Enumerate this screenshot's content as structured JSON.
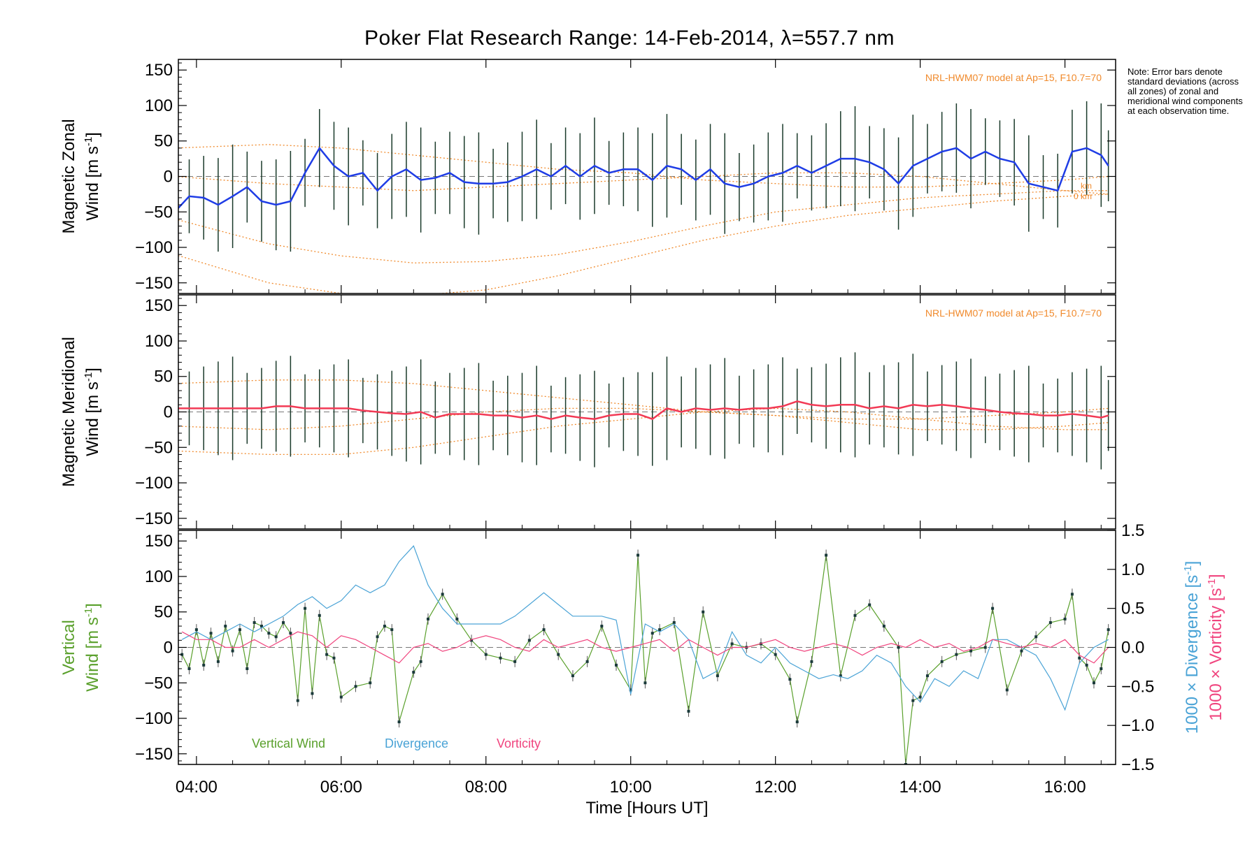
{
  "title": "Poker Flat Research Range: 14-Feb-2014, λ=557.7 nm",
  "note": "Note: Error bars denote standard deviations (across all zones) of zonal and meridional wind components at each observation time.",
  "colors": {
    "zonal": "#1f3de6",
    "meridional": "#f23a55",
    "vertical": "#5aa02c",
    "divergence": "#4aa3d6",
    "vorticity": "#f0447e",
    "model": "#f08a2c",
    "scatter": "#a6a6e6",
    "errorbar": "#1a3a2a"
  },
  "chart_data": [
    {
      "type": "line",
      "panel": "zonal",
      "ylabel": "Magnetic Zonal Wind [m s⁻¹]",
      "ylabel_line1": "Magnetic Zonal",
      "ylabel_line2": "Wind [m s",
      "ylim": [
        -165,
        165
      ],
      "yticks": [
        -150,
        -100,
        -50,
        0,
        50,
        100,
        150
      ],
      "model_label": "NRL-HWM07 model at Ap=15, F10.7=70",
      "model_alt_labels": [
        "km",
        "0 km"
      ],
      "series": [
        {
          "x": [
            3.7,
            3.9,
            4.1,
            4.3,
            4.5,
            4.7,
            4.9,
            5.1,
            5.3,
            5.5,
            5.7,
            5.9,
            6.1,
            6.3,
            6.5,
            6.7,
            6.9,
            7.1,
            7.3,
            7.5,
            7.7,
            7.9,
            8.1,
            8.3,
            8.5,
            8.7,
            8.9,
            9.1,
            9.3,
            9.5,
            9.7,
            9.9,
            10.1,
            10.3,
            10.5,
            10.7,
            10.9,
            11.1,
            11.3,
            11.5,
            11.7,
            11.9,
            12.1,
            12.3,
            12.5,
            12.7,
            12.9,
            13.1,
            13.3,
            13.5,
            13.7,
            13.9,
            14.1,
            14.3,
            14.5,
            14.7,
            14.9,
            15.1,
            15.3,
            15.5,
            15.7,
            15.9,
            16.1,
            16.3,
            16.5,
            16.6
          ],
          "y": [
            -50,
            -28,
            -30,
            -40,
            -28,
            -15,
            -35,
            -40,
            -35,
            5,
            40,
            15,
            0,
            5,
            -20,
            0,
            10,
            -5,
            -2,
            5,
            -8,
            -10,
            -10,
            -8,
            0,
            10,
            0,
            15,
            0,
            15,
            5,
            10,
            10,
            -5,
            15,
            10,
            -5,
            10,
            -10,
            -15,
            -10,
            0,
            5,
            15,
            5,
            15,
            25,
            25,
            20,
            10,
            -10,
            15,
            25,
            35,
            40,
            25,
            35,
            25,
            20,
            -10,
            -15,
            -20,
            35,
            40,
            30,
            15
          ]
        }
      ],
      "model_curves": [
        {
          "x": [
            3.7,
            5.0,
            6.0,
            7.0,
            8.0,
            9.0,
            10.0,
            11.0,
            12.0,
            13.0,
            14.0,
            15.0,
            16.0,
            16.6
          ],
          "y": [
            0,
            -10,
            -15,
            -20,
            -15,
            -10,
            -5,
            0,
            5,
            5,
            0,
            -10,
            -20,
            -25
          ]
        },
        {
          "x": [
            3.7,
            5.0,
            6.0,
            7.0,
            8.0,
            9.0,
            10.0,
            11.0,
            12.0,
            13.0,
            14.0,
            15.0,
            16.0,
            16.6
          ],
          "y": [
            -60,
            -95,
            -112,
            -122,
            -120,
            -110,
            -92,
            -70,
            -50,
            -40,
            -30,
            -25,
            -20,
            -20
          ]
        },
        {
          "x": [
            3.7,
            5.0,
            6.0,
            7.0,
            8.0,
            9.0,
            10.0,
            11.0,
            12.0,
            13.0,
            14.0,
            15.0,
            16.0,
            16.6
          ],
          "y": [
            -110,
            -150,
            -165,
            -168,
            -160,
            -140,
            -115,
            -90,
            -70,
            -55,
            -45,
            -35,
            -28,
            -25
          ]
        },
        {
          "x": [
            3.7,
            5.0,
            6.0,
            7.0,
            8.0,
            9.0,
            10.0,
            11.0,
            12.0,
            13.0,
            14.0,
            15.0,
            16.0,
            16.6
          ],
          "y": [
            40,
            45,
            40,
            30,
            20,
            10,
            5,
            -5,
            -10,
            -15,
            -15,
            -10,
            -5,
            0
          ]
        }
      ]
    },
    {
      "type": "line",
      "panel": "meridional",
      "ylabel": "Magnetic Meridional Wind [m s⁻¹]",
      "ylabel_line1": "Magnetic Meridional",
      "ylabel_line2": "Wind [m s",
      "ylim": [
        -165,
        165
      ],
      "yticks": [
        -150,
        -100,
        -50,
        0,
        50,
        100,
        150
      ],
      "model_label": "NRL-HWM07 model at Ap=15, F10.7=70",
      "series": [
        {
          "x": [
            3.7,
            3.9,
            4.1,
            4.3,
            4.5,
            4.7,
            4.9,
            5.1,
            5.3,
            5.5,
            5.7,
            5.9,
            6.1,
            6.3,
            6.5,
            6.7,
            6.9,
            7.1,
            7.3,
            7.5,
            7.7,
            7.9,
            8.1,
            8.3,
            8.5,
            8.7,
            8.9,
            9.1,
            9.3,
            9.5,
            9.7,
            9.9,
            10.1,
            10.3,
            10.5,
            10.7,
            10.9,
            11.1,
            11.3,
            11.5,
            11.7,
            11.9,
            12.1,
            12.3,
            12.5,
            12.7,
            12.9,
            13.1,
            13.3,
            13.5,
            13.7,
            13.9,
            14.1,
            14.3,
            14.5,
            14.7,
            14.9,
            15.1,
            15.3,
            15.5,
            15.7,
            15.9,
            16.1,
            16.3,
            16.5,
            16.6
          ],
          "y": [
            5,
            5,
            5,
            5,
            5,
            5,
            5,
            8,
            8,
            5,
            5,
            5,
            5,
            2,
            0,
            -2,
            -3,
            0,
            -8,
            -3,
            -3,
            -3,
            -5,
            -5,
            -8,
            -5,
            -10,
            -5,
            -8,
            -10,
            -5,
            -3,
            -3,
            -10,
            5,
            0,
            5,
            3,
            5,
            3,
            5,
            5,
            8,
            15,
            10,
            8,
            10,
            10,
            5,
            8,
            5,
            10,
            8,
            10,
            8,
            5,
            3,
            0,
            -2,
            -3,
            -5,
            -5,
            -3,
            -5,
            -8,
            -5
          ]
        }
      ],
      "model_curves": [
        {
          "x": [
            3.7,
            5.0,
            6.0,
            7.0,
            8.0,
            9.0,
            10.0,
            11.0,
            12.0,
            13.0,
            14.0,
            15.0,
            16.0,
            16.6
          ],
          "y": [
            -55,
            -60,
            -60,
            -50,
            -35,
            -20,
            -10,
            0,
            5,
            0,
            -10,
            -20,
            -25,
            -25
          ]
        },
        {
          "x": [
            3.7,
            5.0,
            6.0,
            7.0,
            8.0,
            9.0,
            10.0,
            11.0,
            12.0,
            13.0,
            14.0,
            15.0,
            16.0,
            16.6
          ],
          "y": [
            -20,
            -25,
            -20,
            -10,
            0,
            5,
            5,
            0,
            -5,
            -15,
            -25,
            -25,
            -20,
            -15
          ]
        },
        {
          "x": [
            3.7,
            5.0,
            6.0,
            7.0,
            8.0,
            9.0,
            10.0,
            11.0,
            12.0,
            13.0,
            14.0,
            15.0,
            16.0,
            16.6
          ],
          "y": [
            40,
            45,
            45,
            40,
            30,
            20,
            10,
            0,
            -5,
            -10,
            -10,
            -5,
            0,
            5
          ]
        }
      ]
    },
    {
      "type": "line",
      "panel": "vertical",
      "ylabel": "Vertical Wind [m s⁻¹]",
      "ylabel_line1": "Vertical",
      "ylabel_line2": "Wind [m s",
      "ylim": [
        -165,
        165
      ],
      "yticks": [
        -150,
        -100,
        -50,
        0,
        50,
        100,
        150
      ],
      "y2label_div": "1000 × Divergence [s⁻¹]",
      "y2label_div_text": "1000 × Divergence [s",
      "y2label_vort": "1000 × Vorticity [s⁻¹]",
      "y2label_vort_text": "1000 × Vorticity [s",
      "y2lim": [
        -1.5,
        1.5
      ],
      "y2ticks": [
        -1.5,
        -1.0,
        -0.5,
        0.0,
        0.5,
        1.0,
        1.5
      ],
      "y2ticklabels": [
        "−1.5",
        "−1.0",
        "−0.5",
        "0.0",
        "0.5",
        "1.0",
        "1.5"
      ],
      "legend": [
        "Vertical Wind",
        "Divergence",
        "Vorticity"
      ],
      "xlabel": "Time [Hours UT]",
      "xticks": [
        4,
        6,
        8,
        10,
        12,
        14,
        16
      ],
      "xticklabels": [
        "04:00",
        "06:00",
        "08:00",
        "10:00",
        "12:00",
        "14:00",
        "16:00"
      ],
      "xlim": [
        3.75,
        16.7
      ],
      "series": [
        {
          "name": "Vertical Wind",
          "x": [
            3.8,
            3.9,
            4.0,
            4.1,
            4.2,
            4.3,
            4.4,
            4.5,
            4.6,
            4.7,
            4.8,
            4.9,
            5.0,
            5.1,
            5.2,
            5.3,
            5.4,
            5.5,
            5.6,
            5.7,
            5.8,
            5.9,
            6.0,
            6.2,
            6.4,
            6.5,
            6.6,
            6.7,
            6.8,
            7.0,
            7.1,
            7.2,
            7.4,
            7.6,
            7.8,
            8.0,
            8.2,
            8.4,
            8.6,
            8.8,
            9.0,
            9.2,
            9.4,
            9.6,
            9.8,
            10.0,
            10.1,
            10.2,
            10.3,
            10.4,
            10.6,
            10.8,
            11.0,
            11.2,
            11.4,
            11.6,
            11.8,
            12.0,
            12.2,
            12.3,
            12.5,
            12.7,
            12.9,
            13.1,
            13.3,
            13.5,
            13.7,
            13.8,
            13.9,
            14.0,
            14.1,
            14.3,
            14.5,
            14.7,
            14.9,
            15.0,
            15.2,
            15.4,
            15.6,
            15.8,
            16.0,
            16.1,
            16.2,
            16.3,
            16.4,
            16.5,
            16.6
          ],
          "y": [
            -10,
            -30,
            25,
            -25,
            20,
            -20,
            30,
            -5,
            25,
            -30,
            35,
            30,
            20,
            15,
            35,
            20,
            -75,
            55,
            -65,
            45,
            -10,
            -15,
            -70,
            -55,
            -50,
            15,
            30,
            25,
            -105,
            -35,
            -20,
            40,
            75,
            40,
            10,
            -10,
            -15,
            -20,
            10,
            25,
            -10,
            -40,
            -20,
            30,
            -25,
            -60,
            130,
            -50,
            20,
            25,
            35,
            -90,
            50,
            -40,
            5,
            0,
            5,
            -10,
            -45,
            -105,
            -20,
            130,
            -40,
            45,
            60,
            30,
            0,
            -165,
            -75,
            -70,
            -40,
            -20,
            -10,
            -5,
            0,
            55,
            -60,
            -5,
            15,
            35,
            40,
            75,
            -15,
            -25,
            -50,
            -30,
            25
          ]
        },
        {
          "name": "Divergence",
          "x": [
            3.8,
            4.0,
            4.2,
            4.4,
            4.6,
            4.8,
            5.0,
            5.2,
            5.4,
            5.6,
            5.8,
            6.0,
            6.2,
            6.4,
            6.6,
            6.8,
            7.0,
            7.2,
            7.4,
            7.6,
            7.8,
            8.0,
            8.2,
            8.4,
            8.6,
            8.8,
            9.0,
            9.2,
            9.4,
            9.6,
            9.8,
            10.0,
            10.2,
            10.4,
            10.6,
            10.8,
            11.0,
            11.2,
            11.4,
            11.6,
            11.8,
            12.0,
            12.2,
            12.4,
            12.6,
            12.8,
            13.0,
            13.2,
            13.4,
            13.6,
            13.8,
            14.0,
            14.2,
            14.4,
            14.6,
            14.8,
            15.0,
            15.2,
            15.4,
            15.6,
            15.8,
            16.0,
            16.2,
            16.4,
            16.6
          ],
          "y": [
            0.1,
            0.2,
            0.1,
            0.2,
            0.3,
            0.2,
            0.3,
            0.4,
            0.55,
            0.65,
            0.5,
            0.6,
            0.8,
            0.7,
            0.8,
            1.1,
            1.3,
            0.8,
            0.5,
            0.3,
            0.3,
            0.3,
            0.3,
            0.4,
            0.55,
            0.7,
            0.55,
            0.4,
            0.4,
            0.4,
            0.35,
            -0.6,
            0.3,
            0.2,
            0.3,
            0.1,
            -0.4,
            -0.3,
            0.2,
            -0.1,
            -0.2,
            0.0,
            -0.2,
            -0.3,
            -0.4,
            -0.35,
            -0.4,
            -0.3,
            -0.1,
            -0.2,
            -0.5,
            -0.7,
            -0.4,
            -0.5,
            -0.3,
            -0.4,
            0.1,
            0.1,
            0.0,
            -0.1,
            -0.4,
            -0.8,
            -0.2,
            0.0,
            0.1
          ]
        },
        {
          "name": "Vorticity",
          "x": [
            3.8,
            4.0,
            4.2,
            4.4,
            4.6,
            4.8,
            5.0,
            5.2,
            5.4,
            5.6,
            5.8,
            6.0,
            6.2,
            6.4,
            6.6,
            6.8,
            7.0,
            7.2,
            7.4,
            7.6,
            7.8,
            8.0,
            8.2,
            8.4,
            8.6,
            8.8,
            9.0,
            9.2,
            9.4,
            9.6,
            9.8,
            10.0,
            10.2,
            10.4,
            10.6,
            10.8,
            11.0,
            11.2,
            11.4,
            11.6,
            11.8,
            12.0,
            12.2,
            12.4,
            12.6,
            12.8,
            13.0,
            13.2,
            13.4,
            13.6,
            13.8,
            14.0,
            14.2,
            14.4,
            14.6,
            14.8,
            15.0,
            15.2,
            15.4,
            15.6,
            15.8,
            16.0,
            16.2,
            16.4,
            16.6
          ],
          "y": [
            0.2,
            0.1,
            0.1,
            0.0,
            0.0,
            0.1,
            0.0,
            0.1,
            0.2,
            0.15,
            0.0,
            0.15,
            0.1,
            0.0,
            -0.1,
            -0.2,
            0.0,
            0.05,
            -0.05,
            0.0,
            0.1,
            0.15,
            0.1,
            0.0,
            -0.05,
            0.1,
            0.0,
            0.05,
            0.1,
            0.0,
            -0.05,
            0.0,
            0.05,
            0.1,
            -0.05,
            0.1,
            0.0,
            -0.1,
            0.0,
            0.0,
            0.05,
            0.1,
            0.0,
            -0.05,
            0.0,
            0.05,
            0.0,
            -0.1,
            0.0,
            0.05,
            0.0,
            0.1,
            0.0,
            0.05,
            -0.05,
            0.0,
            0.1,
            0.05,
            0.0,
            0.05,
            0.0,
            0.1,
            -0.1,
            -0.2,
            0.0
          ]
        }
      ]
    }
  ]
}
